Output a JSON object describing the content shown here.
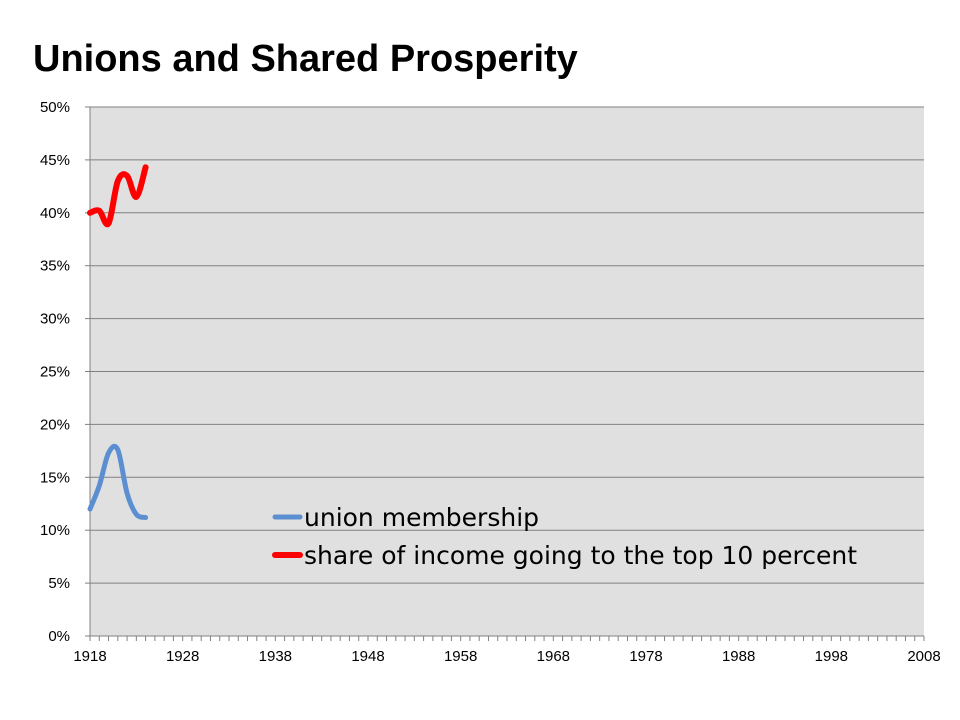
{
  "chart_data": {
    "type": "line",
    "title": "Unions and Shared Prosperity",
    "xlabel": "",
    "ylabel": "",
    "xlim": [
      1918,
      2008
    ],
    "ylim": [
      0,
      50
    ],
    "x_ticks": [
      "1918",
      "1928",
      "1938",
      "1948",
      "1958",
      "1968",
      "1978",
      "1988",
      "1998",
      "2008"
    ],
    "y_ticks": [
      "0%",
      "5%",
      "10%",
      "15%",
      "20%",
      "25%",
      "30%",
      "35%",
      "40%",
      "45%",
      "50%"
    ],
    "grid": true,
    "legend_position": "center-bottom",
    "series": [
      {
        "name": "union membership",
        "color": "#5b8fd1",
        "x": [
          1918,
          1919,
          1920,
          1921,
          1922,
          1923,
          1924
        ],
        "values": [
          12.0,
          14.2,
          17.3,
          17.6,
          13.5,
          11.5,
          11.2
        ]
      },
      {
        "name": "share of income going to the top 10 percent",
        "color": "#ff0000",
        "x": [
          1918,
          1919,
          1920,
          1921,
          1922,
          1923,
          1924
        ],
        "values": [
          40.0,
          40.2,
          39.0,
          43.0,
          43.5,
          41.5,
          44.3
        ]
      }
    ]
  }
}
